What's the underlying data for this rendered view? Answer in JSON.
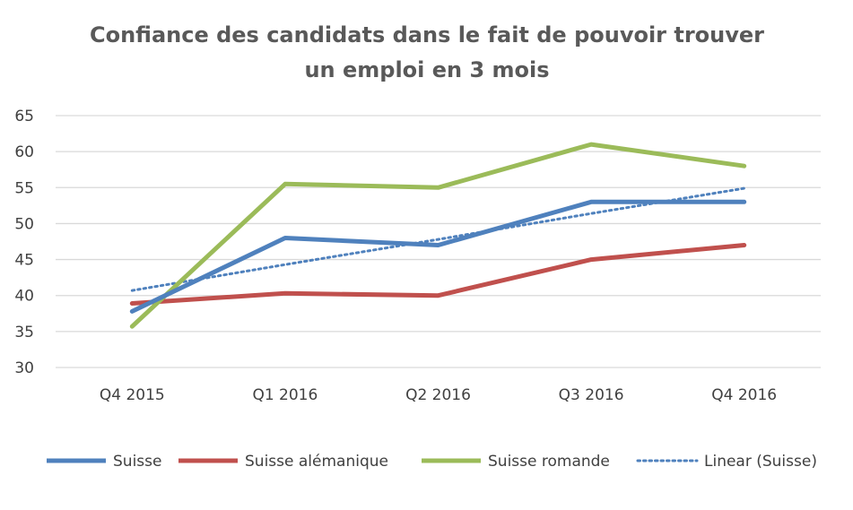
{
  "chart_data": {
    "type": "line",
    "title_lines": [
      "Confiance des candidats dans le fait de pouvoir trouver",
      "un emploi en 3 mois"
    ],
    "categories": [
      "Q4 2015",
      "Q1 2016",
      "Q2 2016",
      "Q3 2016",
      "Q4 2016"
    ],
    "ylim": [
      30,
      65
    ],
    "yticks": [
      30,
      35,
      40,
      45,
      50,
      55,
      60,
      65
    ],
    "grid": true,
    "legend_position": "bottom",
    "series": [
      {
        "name": "Suisse",
        "values": [
          37.8,
          48,
          47,
          53,
          53
        ],
        "color": "#4f81bd",
        "style": "solid"
      },
      {
        "name": "Suisse alémanique",
        "values": [
          38.9,
          40.3,
          40,
          45,
          47
        ],
        "color": "#c0504d",
        "style": "solid"
      },
      {
        "name": "Suisse romande",
        "values": [
          35.7,
          55.5,
          55,
          61,
          58
        ],
        "color": "#9bbb59",
        "style": "solid"
      },
      {
        "name": "Linear (Suisse)",
        "values": [
          40.7,
          44.3,
          47.8,
          51.4,
          54.9
        ],
        "color": "#4f81bd",
        "style": "dotted"
      }
    ]
  }
}
